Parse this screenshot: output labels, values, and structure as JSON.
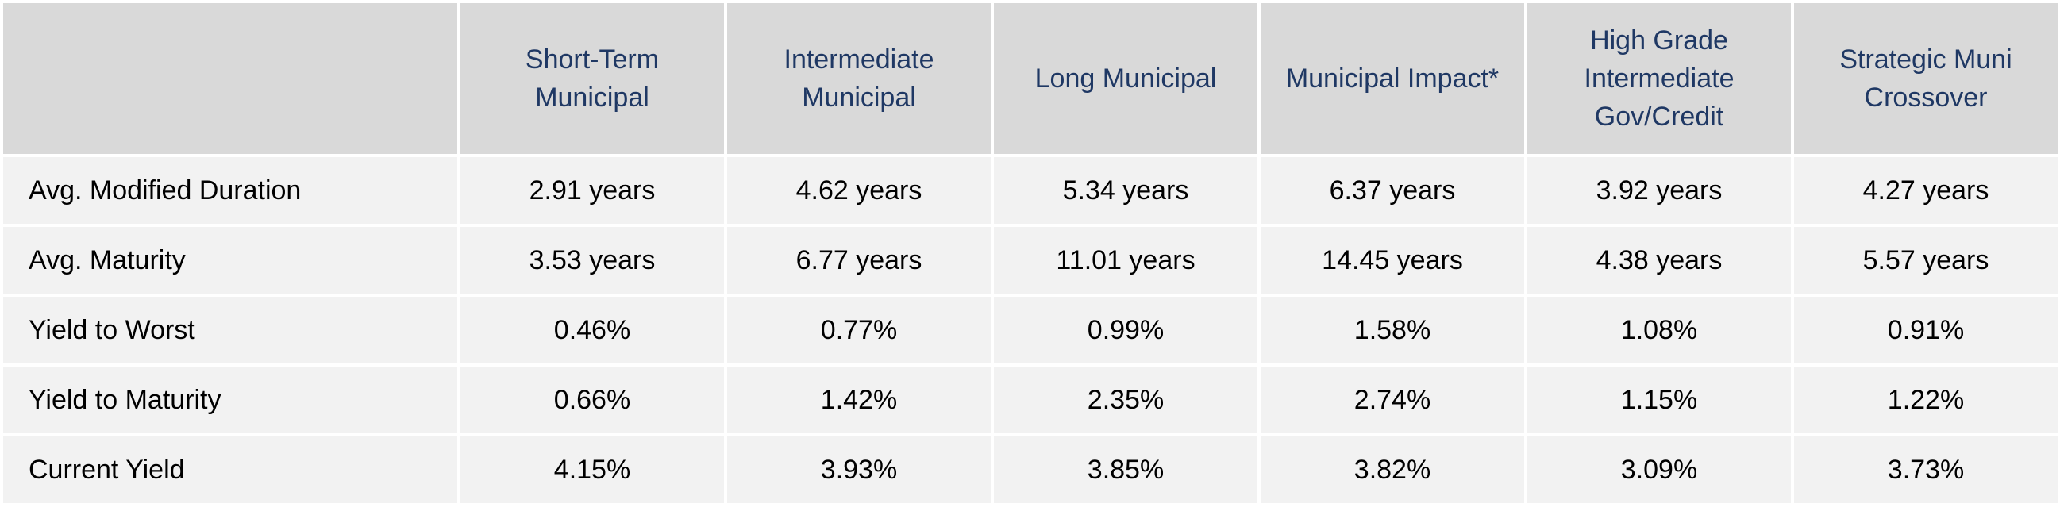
{
  "table": {
    "columns": [
      "",
      "Short-Term Municipal",
      "Intermediate Municipal",
      "Long Municipal",
      "Municipal Impact*",
      "High Grade Intermediate Gov/Credit",
      "Strategic Muni Crossover"
    ],
    "rows": [
      {
        "label": "Avg. Modified Duration",
        "values": [
          "2.91 years",
          "4.62 years",
          "5.34 years",
          "6.37 years",
          "3.92 years",
          "4.27 years"
        ]
      },
      {
        "label": "Avg. Maturity",
        "values": [
          "3.53 years",
          "6.77 years",
          "11.01 years",
          "14.45 years",
          "4.38 years",
          "5.57 years"
        ]
      },
      {
        "label": "Yield to Worst",
        "values": [
          "0.46%",
          "0.77%",
          "0.99%",
          "1.58%",
          "1.08%",
          "0.91%"
        ]
      },
      {
        "label": "Yield to Maturity",
        "values": [
          "0.66%",
          "1.42%",
          "2.35%",
          "2.74%",
          "1.15%",
          "1.22%"
        ]
      },
      {
        "label": "Current Yield",
        "values": [
          "4.15%",
          "3.93%",
          "3.85%",
          "3.82%",
          "3.09%",
          "3.73%"
        ]
      }
    ]
  },
  "colors": {
    "header_bg": "#d9d9d9",
    "header_text": "#1f3864",
    "body_bg": "#f2f2f2",
    "body_text": "#000000"
  }
}
